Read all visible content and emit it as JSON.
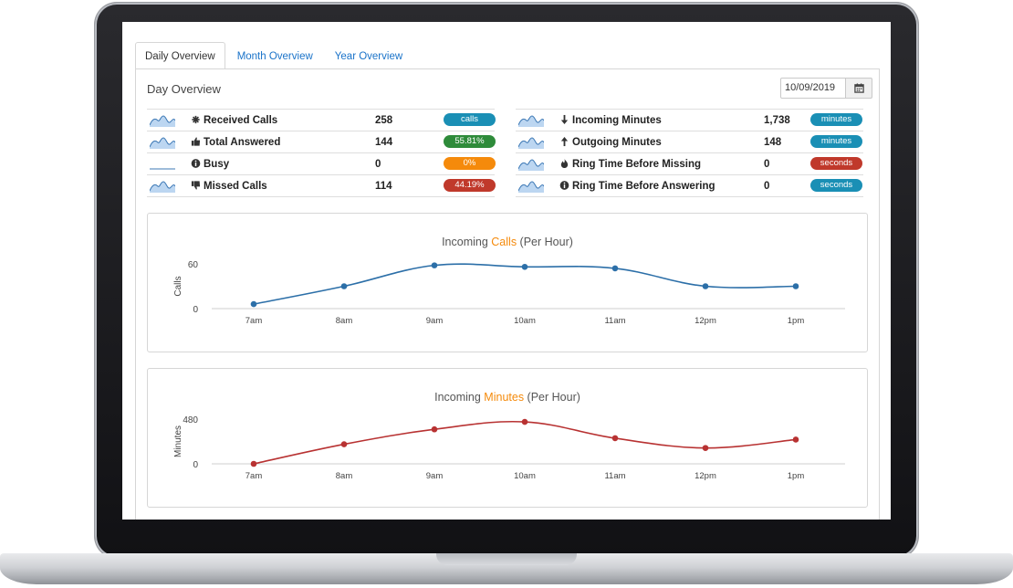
{
  "tabs": [
    {
      "label": "Daily Overview",
      "active": true
    },
    {
      "label": "Month Overview",
      "active": false
    },
    {
      "label": "Year Overview",
      "active": false
    }
  ],
  "panel": {
    "title": "Day Overview",
    "date_value": "10/09/2019",
    "calendar_icon": "calendar-icon"
  },
  "stats_left": [
    {
      "icon": "asterisk-icon",
      "label": "Received Calls",
      "value": "258",
      "badge": "calls",
      "badge_color": "#1a8fb5"
    },
    {
      "icon": "thumbs-up-icon",
      "label": "Total Answered",
      "value": "144",
      "badge": "55.81%",
      "badge_color": "#2e8b3a"
    },
    {
      "icon": "info-circle-icon",
      "label": "Busy",
      "value": "0",
      "badge": "0%",
      "badge_color": "#f58a0b"
    },
    {
      "icon": "thumbs-down-icon",
      "label": "Missed Calls",
      "value": "114",
      "badge": "44.19%",
      "badge_color": "#c0392b"
    }
  ],
  "stats_right": [
    {
      "icon": "arrow-down-icon",
      "label": "Incoming Minutes",
      "value": "1,738",
      "badge": "minutes",
      "badge_color": "#1a8fb5"
    },
    {
      "icon": "arrow-up-icon",
      "label": "Outgoing Minutes",
      "value": "148",
      "badge": "minutes",
      "badge_color": "#1a8fb5"
    },
    {
      "icon": "fire-icon",
      "label": "Ring Time Before Missing",
      "value": "0",
      "badge": "seconds",
      "badge_color": "#c0392b"
    },
    {
      "icon": "info-circle-icon",
      "label": "Ring Time Before Answering",
      "value": "0",
      "badge": "seconds",
      "badge_color": "#1a8fb5"
    }
  ],
  "chart_data": [
    {
      "type": "line",
      "title_prefix": "Incoming ",
      "title_highlight": "Calls",
      "title_suffix": " (Per Hour)",
      "highlight_color": "#f58a0b",
      "ylabel": "Calls",
      "ylim": [
        0,
        60
      ],
      "yticks": [
        "0",
        "60"
      ],
      "categories": [
        "7am",
        "8am",
        "9am",
        "10am",
        "11am",
        "12pm",
        "1pm"
      ],
      "values": [
        6,
        30,
        58,
        56,
        54,
        30,
        30
      ],
      "color": "#2c6fa8",
      "grid": false
    },
    {
      "type": "line",
      "title_prefix": "Incoming ",
      "title_highlight": "Minutes",
      "title_suffix": " (Per Hour)",
      "highlight_color": "#f58a0b",
      "ylabel": "Minutes",
      "ylim": [
        0,
        480
      ],
      "yticks": [
        "0",
        "480"
      ],
      "categories": [
        "7am",
        "8am",
        "9am",
        "10am",
        "11am",
        "12pm",
        "1pm"
      ],
      "values": [
        0,
        210,
        370,
        450,
        275,
        170,
        260
      ],
      "color": "#b83232",
      "grid": false
    }
  ]
}
